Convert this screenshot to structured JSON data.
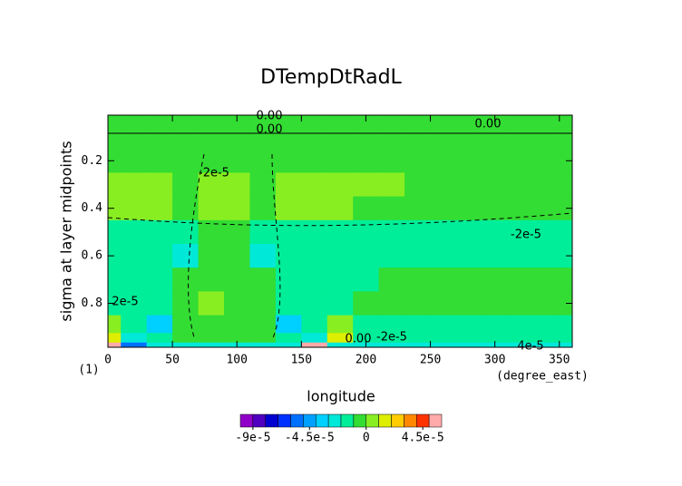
{
  "chart_data": {
    "type": "contour",
    "title": "DTempDtRadL",
    "x_label": "longitude",
    "y_label": "sigma at layer midpoints",
    "x_units": "(degree_east)",
    "y_units": "(1)",
    "x": [
      0,
      20,
      40,
      60,
      80,
      100,
      120,
      140,
      160,
      180,
      200,
      220,
      240,
      260,
      280,
      300,
      320,
      340,
      360
    ],
    "y": [
      0.02,
      0.1,
      0.2,
      0.3,
      0.4,
      0.5,
      0.6,
      0.7,
      0.8,
      0.9,
      0.95,
      0.98
    ],
    "z": [
      [
        -3e-06,
        -3e-06,
        -3e-06,
        -3e-06,
        -3e-06,
        -3e-06,
        -3e-06,
        -3e-06,
        -3e-06,
        -3e-06,
        -3e-06,
        -3e-06,
        -3e-06,
        -3e-06,
        -3e-06,
        -3e-06,
        -3e-06,
        -3e-06,
        -3e-06
      ],
      [
        -5e-06,
        -5e-06,
        -5e-06,
        -5e-06,
        -5e-06,
        -5e-06,
        -5e-06,
        -5e-06,
        -5e-06,
        -5e-06,
        -5e-06,
        -5e-06,
        -5e-06,
        -5e-06,
        -5e-06,
        -5e-06,
        -5e-06,
        -5e-06,
        -5e-06
      ],
      [
        -8e-06,
        -8e-06,
        -8e-06,
        -8e-06,
        -8e-06,
        -8e-06,
        -8e-06,
        -8e-06,
        -8e-06,
        -8e-06,
        -8e-06,
        -8e-06,
        -8e-06,
        -8e-06,
        -8e-06,
        -8e-06,
        -8e-06,
        -8e-06,
        -8e-06
      ],
      [
        2e-06,
        2e-06,
        2e-06,
        -5e-06,
        5e-06,
        5e-06,
        -5e-06,
        2e-06,
        2e-06,
        2e-06,
        2e-06,
        2e-06,
        -5e-06,
        -5e-06,
        -5e-06,
        -5e-06,
        -5e-06,
        -5e-06,
        -5e-06
      ],
      [
        1e-06,
        1e-06,
        1e-06,
        -8e-06,
        6e-06,
        6e-06,
        -8e-06,
        1e-06,
        1e-06,
        1e-06,
        -6e-06,
        -6e-06,
        -6e-06,
        -6e-06,
        -6e-06,
        -6e-06,
        -6e-06,
        -6e-06,
        -6e-06
      ],
      [
        -1.2e-05,
        -1.2e-05,
        -1.2e-05,
        -1.5e-05,
        -4e-06,
        -4e-06,
        -1.5e-05,
        -1.1e-05,
        -1.1e-05,
        -1.1e-05,
        -1.1e-05,
        -1.1e-05,
        -1.1e-05,
        -1.1e-05,
        -1.1e-05,
        -1.1e-05,
        -1.1e-05,
        -1.1e-05,
        -1.1e-05
      ],
      [
        -1.5e-05,
        -1.5e-05,
        -1.5e-05,
        -2.5e-05,
        -5e-06,
        -5e-06,
        -2.5e-05,
        -1.5e-05,
        -1.5e-05,
        -1.5e-05,
        -1.2e-05,
        -1.2e-05,
        -1.2e-05,
        -1.2e-05,
        -1.2e-05,
        -1.2e-05,
        -1.2e-05,
        -1.2e-05,
        -1.2e-05
      ],
      [
        -1.5e-05,
        -1.5e-05,
        -1.5e-05,
        -1e-05,
        -4e-06,
        -4e-06,
        -1e-05,
        -1.6e-05,
        -1.6e-05,
        -1.6e-05,
        -1.6e-05,
        -6e-06,
        -6e-06,
        -6e-06,
        -6e-06,
        -6e-06,
        -6e-06,
        -6e-06,
        -6e-06
      ],
      [
        -1.3e-05,
        -1.3e-05,
        -1.3e-05,
        -4e-06,
        5e-06,
        -4e-06,
        -4e-06,
        -1.3e-05,
        -1.3e-05,
        -1.3e-05,
        -8e-06,
        -8e-06,
        -8e-06,
        -8e-06,
        -8e-06,
        -8e-06,
        -8e-06,
        -8e-06,
        -8e-06
      ],
      [
        2e-06,
        -1.5e-05,
        -4e-05,
        -6e-06,
        -6e-06,
        -6e-06,
        -6e-06,
        -4e-05,
        -1.5e-05,
        3e-06,
        -1.4e-05,
        -1.4e-05,
        -1.4e-05,
        -1.4e-05,
        -1.4e-05,
        -1.4e-05,
        -1.4e-05,
        -1.4e-05,
        -1.4e-05
      ],
      [
        1e-05,
        -3e-05,
        -1.5e-05,
        -8e-06,
        -8e-06,
        -8e-06,
        -8e-06,
        -1.5e-05,
        -3e-05,
        1e-05,
        -1.5e-05,
        -1.5e-05,
        -1.5e-05,
        -1.5e-05,
        -1.5e-05,
        -1.5e-05,
        -1.5e-05,
        -1.5e-05,
        -1.5e-05
      ],
      [
        5e-05,
        -6e-05,
        -2.5e-05,
        -2.5e-05,
        -2.5e-05,
        -2.5e-05,
        -2.5e-05,
        -2.5e-05,
        5e-05,
        -2.5e-05,
        -2.8e-05,
        -2.8e-05,
        -2.8e-05,
        -2.8e-05,
        -2.8e-05,
        -2.8e-05,
        -2.8e-05,
        -2.8e-05,
        -2.8e-05
      ]
    ],
    "xlim": [
      0,
      360
    ],
    "ylim": [
      0.985,
      0.008
    ],
    "xticks": [
      0,
      50,
      100,
      150,
      200,
      250,
      300,
      350
    ],
    "yticks": [
      0.2,
      0.4,
      0.6,
      0.8
    ],
    "contour_labels": [
      "0.00",
      "0.00",
      "0.00",
      "-2e-5",
      "-2e-5",
      "2e-5",
      "0.00",
      "-2e-5",
      "4e-5"
    ],
    "colorbar": {
      "levels": [
        -0.0001,
        -9e-05,
        -8e-05,
        -7e-05,
        -6e-05,
        -5e-05,
        -4e-05,
        -3e-05,
        -2e-05,
        -1e-05,
        0,
        1e-05,
        2e-05,
        3e-05,
        4e-05,
        5e-05,
        6e-05
      ],
      "colors": [
        "#9000c8",
        "#5000c0",
        "#0000d0",
        "#0030ff",
        "#0070ff",
        "#00a0ff",
        "#00d0ff",
        "#00e8d8",
        "#00ee99",
        "#33dd33",
        "#88ee22",
        "#ddee00",
        "#ffcc00",
        "#ff8800",
        "#ff3300",
        "#ffaaaa"
      ],
      "ticks": [
        {
          "value": -9e-05,
          "label": "-9e-5"
        },
        {
          "value": -4.5e-05,
          "label": "-4.5e-5"
        },
        0,
        {
          "value": 4.5e-05,
          "label": "4.5e-5"
        }
      ]
    }
  }
}
